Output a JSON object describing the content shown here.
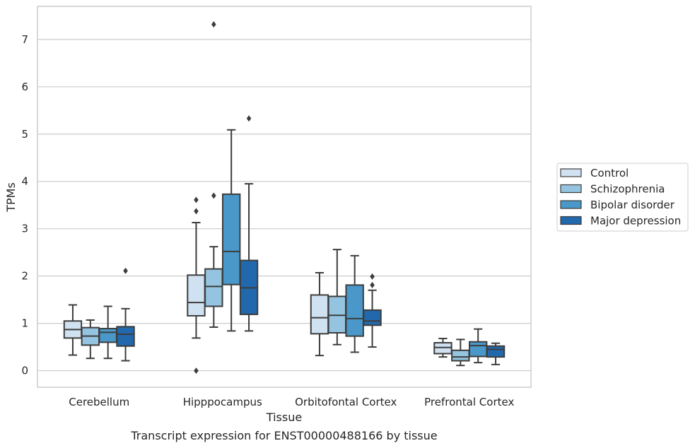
{
  "chart_data": {
    "type": "box",
    "xlabel": "Tissue",
    "ylabel": "TPMs",
    "caption": "Transcript expression for ENST00000488166 by tissue",
    "ylim": [
      -0.35,
      7.7
    ],
    "yticks": [
      0,
      1,
      2,
      3,
      4,
      5,
      6,
      7
    ],
    "grid": true,
    "legend_position": "right",
    "categories": [
      "Cerebellum",
      "Hipppocampus",
      "Orbitofontal Cortex",
      "Prefrontal Cortex"
    ],
    "series": [
      {
        "name": "Control",
        "color": "#d0e1f2",
        "boxes": [
          {
            "min": 0.33,
            "q1": 0.69,
            "median": 0.87,
            "q3": 1.05,
            "max": 1.39,
            "outliers": []
          },
          {
            "min": 0.69,
            "q1": 1.16,
            "median": 1.44,
            "q3": 2.02,
            "max": 3.13,
            "outliers": [
              3.37,
              3.61,
              0.0
            ]
          },
          {
            "min": 0.32,
            "q1": 0.78,
            "median": 1.12,
            "q3": 1.6,
            "max": 2.07,
            "outliers": []
          },
          {
            "min": 0.29,
            "q1": 0.36,
            "median": 0.49,
            "q3": 0.59,
            "max": 0.68,
            "outliers": []
          }
        ]
      },
      {
        "name": "Schizophrenia",
        "color": "#94c4df",
        "boxes": [
          {
            "min": 0.26,
            "q1": 0.54,
            "median": 0.73,
            "q3": 0.91,
            "max": 1.07,
            "outliers": []
          },
          {
            "min": 0.92,
            "q1": 1.36,
            "median": 1.78,
            "q3": 2.15,
            "max": 2.62,
            "outliers": [
              3.7,
              7.32
            ]
          },
          {
            "min": 0.55,
            "q1": 0.8,
            "median": 1.17,
            "q3": 1.57,
            "max": 2.56,
            "outliers": []
          },
          {
            "min": 0.11,
            "q1": 0.21,
            "median": 0.29,
            "q3": 0.43,
            "max": 0.66,
            "outliers": []
          }
        ]
      },
      {
        "name": "Bipolar disorder",
        "color": "#4a98c9",
        "boxes": [
          {
            "min": 0.26,
            "q1": 0.6,
            "median": 0.81,
            "q3": 0.89,
            "max": 1.36,
            "outliers": []
          },
          {
            "min": 0.84,
            "q1": 1.82,
            "median": 2.52,
            "q3": 3.73,
            "max": 5.09,
            "outliers": []
          },
          {
            "min": 0.39,
            "q1": 0.73,
            "median": 1.1,
            "q3": 1.81,
            "max": 2.43,
            "outliers": []
          },
          {
            "min": 0.17,
            "q1": 0.3,
            "median": 0.53,
            "q3": 0.61,
            "max": 0.88,
            "outliers": []
          }
        ]
      },
      {
        "name": "Major depression",
        "color": "#2268ac",
        "boxes": [
          {
            "min": 0.21,
            "q1": 0.52,
            "median": 0.77,
            "q3": 0.93,
            "max": 1.31,
            "outliers": [
              2.11
            ]
          },
          {
            "min": 0.84,
            "q1": 1.19,
            "median": 1.75,
            "q3": 2.33,
            "max": 3.95,
            "outliers": [
              5.33
            ]
          },
          {
            "min": 0.5,
            "q1": 0.96,
            "median": 1.05,
            "q3": 1.28,
            "max": 1.7,
            "outliers": [
              1.81,
              1.99
            ]
          },
          {
            "min": 0.13,
            "q1": 0.29,
            "median": 0.45,
            "q3": 0.52,
            "max": 0.58,
            "outliers": []
          }
        ]
      }
    ]
  }
}
